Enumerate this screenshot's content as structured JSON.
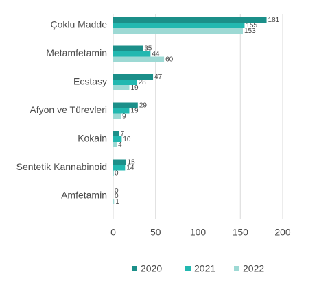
{
  "chart_data": {
    "type": "bar",
    "orientation": "horizontal",
    "categories": [
      "Çoklu Madde",
      "Metamfetamin",
      "Ecstasy",
      "Afyon ve Türevleri",
      "Kokain",
      "Sentetik Kannabinoid",
      "Amfetamin"
    ],
    "series": [
      {
        "name": "2020",
        "color": "#1b8f89",
        "values": [
          181,
          35,
          47,
          29,
          7,
          15,
          0
        ]
      },
      {
        "name": "2021",
        "color": "#22b8b0",
        "values": [
          155,
          44,
          28,
          19,
          10,
          14,
          0
        ]
      },
      {
        "name": "2022",
        "color": "#9dd9d4",
        "values": [
          153,
          60,
          19,
          9,
          4,
          0,
          1
        ]
      }
    ],
    "xlim": [
      0,
      200
    ],
    "xticks": [
      "0",
      "50",
      "100",
      "150",
      "200"
    ],
    "grid": "vertical",
    "legend": "bottom",
    "title": "",
    "xlabel": "",
    "ylabel": ""
  }
}
